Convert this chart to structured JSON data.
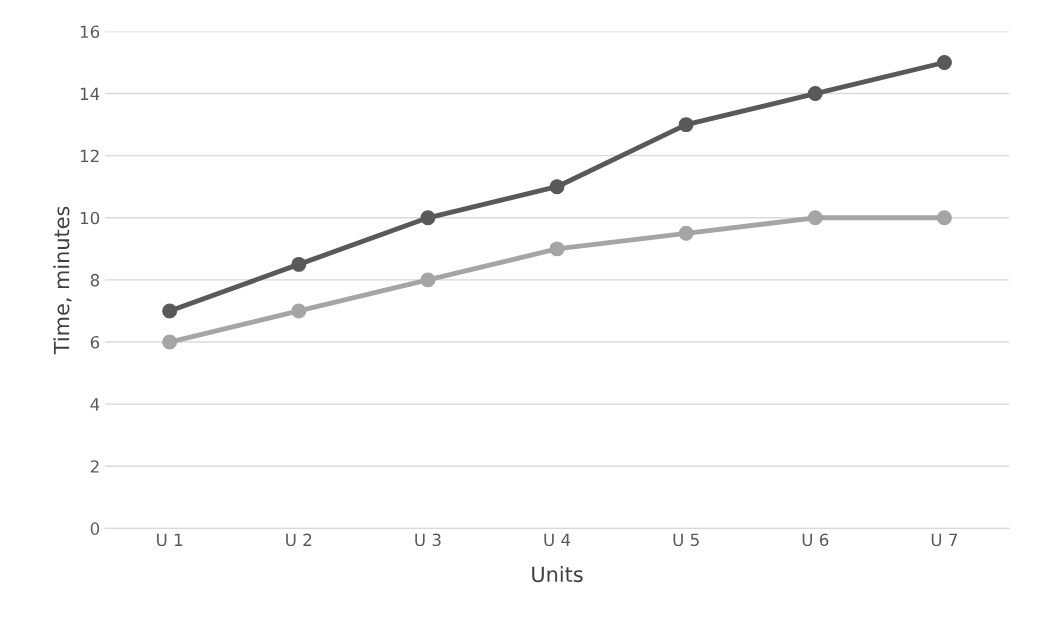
{
  "chart_data": {
    "type": "line",
    "xlabel": "Units",
    "ylabel": "Time, minutes",
    "categories": [
      "U 1",
      "U 2",
      "U 3",
      "U 4",
      "U 5",
      "U 6",
      "U 7"
    ],
    "series": [
      {
        "color": "#595959",
        "values": [
          7,
          8.5,
          10,
          11,
          13,
          14,
          15
        ]
      },
      {
        "color": "#a5a5a5",
        "values": [
          6,
          7,
          8,
          9,
          9.5,
          10,
          10
        ]
      }
    ],
    "ylim": [
      0,
      16
    ],
    "yticks": [
      0,
      2,
      4,
      6,
      8,
      10,
      12,
      14,
      16
    ],
    "grid": "y",
    "legend": false,
    "marker": "circle",
    "line_style": "solid"
  }
}
